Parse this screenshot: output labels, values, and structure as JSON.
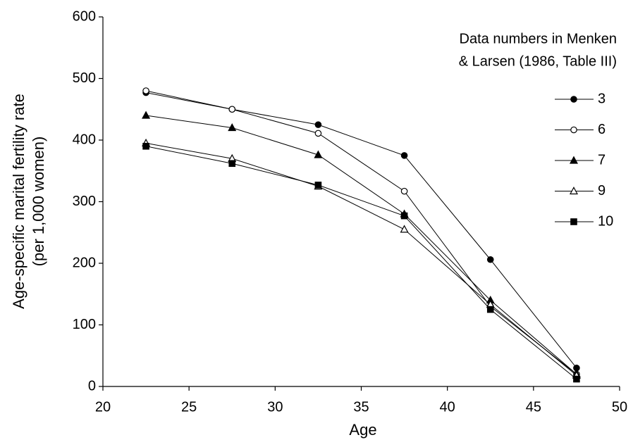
{
  "chart_data": {
    "type": "line",
    "xlabel": "Age",
    "ylabel": [
      "Age-specific marital fertility rate",
      "(per 1,000 women)"
    ],
    "annotation": [
      "Data numbers in Menken",
      "& Larsen (1986, Table III)"
    ],
    "x": [
      22.5,
      27.5,
      32.5,
      37.5,
      42.5,
      47.5
    ],
    "series": [
      {
        "name": "3",
        "color": "#000000",
        "marker": "circle",
        "filled": true,
        "values": [
          477,
          450,
          425,
          375,
          206,
          30
        ]
      },
      {
        "name": "6",
        "color": "#000000",
        "marker": "circle",
        "filled": false,
        "values": [
          480,
          450,
          411,
          317,
          130,
          20
        ]
      },
      {
        "name": "7",
        "color": "#000000",
        "marker": "triangle",
        "filled": true,
        "values": [
          440,
          420,
          376,
          280,
          140,
          20
        ]
      },
      {
        "name": "9",
        "color": "#000000",
        "marker": "triangle",
        "filled": false,
        "values": [
          395,
          370,
          325,
          255,
          133,
          18
        ]
      },
      {
        "name": "10",
        "color": "#000000",
        "marker": "square",
        "filled": true,
        "values": [
          390,
          362,
          327,
          277,
          125,
          12
        ]
      }
    ],
    "xlim": [
      20,
      50
    ],
    "xticks": [
      20,
      25,
      30,
      35,
      40,
      45,
      50
    ],
    "ylim": [
      0,
      600
    ],
    "yticks": [
      0,
      100,
      200,
      300,
      400,
      500,
      600
    ],
    "grid": false
  }
}
